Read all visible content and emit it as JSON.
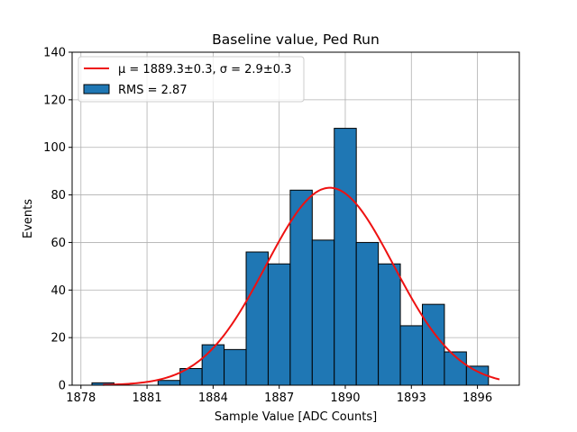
{
  "chart_data": {
    "type": "bar",
    "title": "Baseline value, Ped Run",
    "xlabel": "Sample Value [ADC Counts]",
    "ylabel": "Events",
    "xlim": [
      1877.6,
      1897.9
    ],
    "ylim": [
      0,
      140
    ],
    "xticks": [
      1878,
      1881,
      1884,
      1887,
      1890,
      1893,
      1896
    ],
    "yticks": [
      0,
      20,
      40,
      60,
      80,
      100,
      120,
      140
    ],
    "grid": true,
    "legend_position": "upper-left",
    "histogram": {
      "name": "RMS = 2.87",
      "color": "#1f77b4",
      "edge_color": "#000000",
      "bins": [
        {
          "left": 1878.5,
          "right": 1879.5,
          "value": 1
        },
        {
          "left": 1879.5,
          "right": 1880.5,
          "value": 0
        },
        {
          "left": 1880.5,
          "right": 1881.5,
          "value": 0
        },
        {
          "left": 1881.5,
          "right": 1882.5,
          "value": 2
        },
        {
          "left": 1882.5,
          "right": 1883.5,
          "value": 7
        },
        {
          "left": 1883.5,
          "right": 1884.5,
          "value": 17
        },
        {
          "left": 1884.5,
          "right": 1885.5,
          "value": 15
        },
        {
          "left": 1885.5,
          "right": 1886.5,
          "value": 56
        },
        {
          "left": 1886.5,
          "right": 1887.5,
          "value": 51
        },
        {
          "left": 1887.5,
          "right": 1888.5,
          "value": 82
        },
        {
          "left": 1888.5,
          "right": 1889.5,
          "value": 61
        },
        {
          "left": 1889.5,
          "right": 1890.5,
          "value": 108
        },
        {
          "left": 1890.5,
          "right": 1891.5,
          "value": 60
        },
        {
          "left": 1891.5,
          "right": 1892.5,
          "value": 51
        },
        {
          "left": 1892.5,
          "right": 1893.5,
          "value": 25
        },
        {
          "left": 1893.5,
          "right": 1894.5,
          "value": 34
        },
        {
          "left": 1894.5,
          "right": 1895.5,
          "value": 14
        },
        {
          "left": 1895.5,
          "right": 1896.5,
          "value": 8
        }
      ]
    },
    "fit": {
      "name": "μ = 1889.3±0.3, σ = 2.9±0.3",
      "color": "#ee1111",
      "mu": 1889.3,
      "sigma": 2.9,
      "amplitude": 83,
      "x_range": [
        1879,
        1897
      ]
    }
  }
}
